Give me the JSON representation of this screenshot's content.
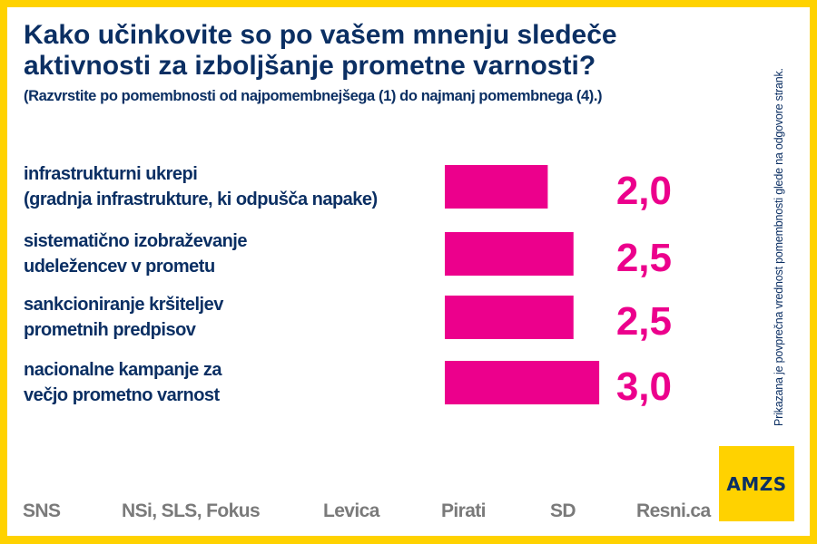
{
  "header": {
    "title_line1": "Kako učinkovite so po vašem mnenju sledeče",
    "title_line2": "aktivnosti za izboljšanje prometne varnosti?",
    "subtitle": "(Razvrstite po pomembnosti od najpomembnejšega (1) do najmanj pomembnega (4).)"
  },
  "side_note": "Prikazana je povprečna vrednost pomembnosti glede na odgovore strank.",
  "chart_data": {
    "type": "bar",
    "orientation": "horizontal",
    "title": "Kako učinkovite so po vašem mnenju sledeče aktivnosti za izboljšanje prometne varnosti?",
    "categories": [
      [
        "infrastrukturni ukrepi",
        "(gradnja infrastrukture, ki odpušča napake)"
      ],
      [
        "sistematično izobraževanje",
        "udeležencev v prometu"
      ],
      [
        "sankcioniranje kršiteljev",
        "prometnih predpisov"
      ],
      [
        "nacionalne kampanje za",
        "večjo prometno varnost"
      ]
    ],
    "values": [
      2.0,
      2.5,
      2.5,
      3.0
    ],
    "value_labels": [
      "2,0",
      "2,5",
      "2,5",
      "3,0"
    ],
    "xlim": [
      0,
      4
    ],
    "grid": false,
    "bar_color": "#EC008C"
  },
  "footer": {
    "parties": [
      "SNS",
      "NSi, SLS, Fokus",
      "Levica",
      "Pirati",
      "SD",
      "Resni.ca"
    ],
    "logo_text": "AMZS"
  },
  "colors": {
    "frame": "#FFD200",
    "text_primary": "#0B2F63",
    "accent": "#EC008C",
    "footer_text": "#7a7a7a"
  }
}
